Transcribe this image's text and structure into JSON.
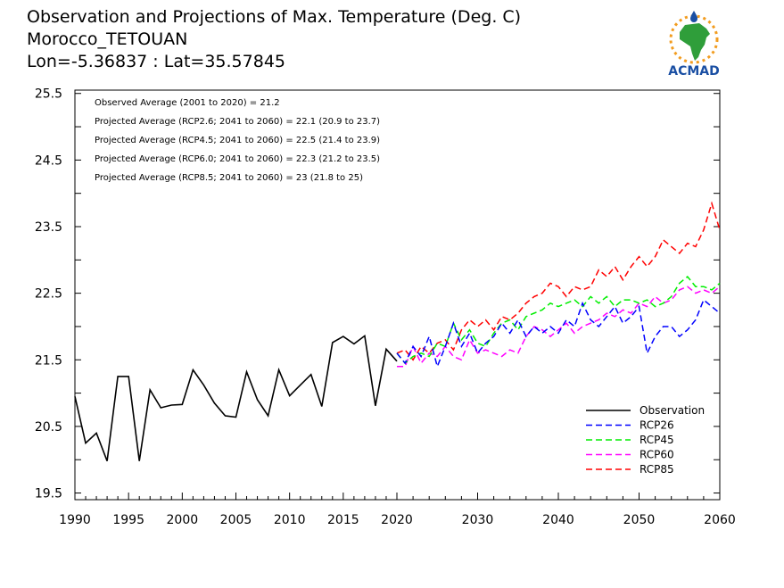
{
  "header": {
    "title_line1": "Observation and Projections of Max. Temperature (Deg. C)",
    "title_line2": "Morocco_TETOUAN",
    "title_line3": "Lon=-5.36837 : Lat=35.57845",
    "logo_text": "ACMAD"
  },
  "colors": {
    "observation": "#000000",
    "rcp26": "#0000ff",
    "rcp45": "#00ee00",
    "rcp60": "#ff00ff",
    "rcp85": "#ff0000",
    "logo_green": "#2f9e3a",
    "logo_blue": "#1a4fa3",
    "logo_orange": "#f29c1f"
  },
  "chart_data": {
    "type": "line",
    "title": "Observation and Projections of Max. Temperature (Deg. C)",
    "xlabel": "",
    "ylabel": "",
    "xlim": [
      1990,
      2060
    ],
    "ylim": [
      19.4,
      25.55
    ],
    "y_ticks": [
      "19.5",
      "20.5",
      "21.5",
      "22.5",
      "23.5",
      "24.5",
      "25.5"
    ],
    "x_ticks": [
      "1990",
      "1995",
      "2000",
      "2005",
      "2010",
      "2015",
      "2020",
      "2030",
      "2040",
      "2050",
      "2060"
    ],
    "x_tick_values": [
      1990,
      1995,
      2000,
      2005,
      2010,
      2015,
      2020,
      2030,
      2040,
      2050,
      2060
    ],
    "annotations": [
      "Observed Average (2001 to 2020) = 21.2",
      "Projected Average (RCP2.6; 2041 to 2060) = 22.1 (20.9 to 23.7)",
      "Projected Average (RCP4.5; 2041 to 2060) = 22.5 (21.4 to 23.9)",
      "Projected Average (RCP6.0; 2041 to 2060) = 22.3 (21.2 to 23.5)",
      "Projected Average (RCP8.5; 2041 to 2060) = 23 (21.8 to 25)"
    ],
    "legend_position": "bottom-right",
    "grid": false,
    "observation": {
      "name": "Observation",
      "x": [
        1990,
        1991,
        1992,
        1993,
        1994,
        1995,
        1996,
        1997,
        1998,
        1999,
        2000,
        2001,
        2002,
        2003,
        2004,
        2005,
        2006,
        2007,
        2008,
        2009,
        2010,
        2011,
        2012,
        2013,
        2014,
        2015,
        2016,
        2017,
        2018,
        2019,
        2020
      ],
      "values": [
        20.95,
        20.25,
        20.4,
        19.98,
        21.25,
        21.25,
        19.98,
        21.05,
        20.78,
        20.82,
        20.83,
        21.35,
        21.12,
        20.85,
        20.66,
        20.64,
        21.32,
        20.9,
        20.66,
        21.35,
        20.96,
        21.12,
        21.28,
        20.8,
        21.76,
        21.85,
        21.74,
        21.86,
        20.81,
        21.66,
        21.48
      ]
    },
    "series": [
      {
        "name": "RCP26",
        "x": [
          2020,
          2021,
          2022,
          2023,
          2024,
          2025,
          2026,
          2027,
          2028,
          2029,
          2030,
          2031,
          2032,
          2033,
          2034,
          2035,
          2036,
          2037,
          2038,
          2039,
          2040,
          2041,
          2042,
          2043,
          2044,
          2045,
          2046,
          2047,
          2048,
          2049,
          2050,
          2051,
          2052,
          2053,
          2054,
          2055,
          2056,
          2057,
          2058,
          2059,
          2060
        ],
        "values": [
          21.6,
          21.45,
          21.7,
          21.55,
          21.85,
          21.4,
          21.7,
          22.05,
          21.7,
          21.9,
          21.6,
          21.75,
          21.85,
          22.05,
          21.9,
          22.1,
          21.85,
          22.0,
          21.9,
          22.0,
          21.9,
          22.1,
          22.0,
          22.35,
          22.1,
          22.0,
          22.15,
          22.3,
          22.05,
          22.15,
          22.3,
          21.6,
          21.85,
          22.0,
          22.0,
          21.85,
          21.95,
          22.1,
          22.4,
          22.3,
          22.2
        ]
      },
      {
        "name": "RCP45",
        "x": [
          2020,
          2021,
          2022,
          2023,
          2024,
          2025,
          2026,
          2027,
          2028,
          2029,
          2030,
          2031,
          2032,
          2033,
          2034,
          2035,
          2036,
          2037,
          2038,
          2039,
          2040,
          2041,
          2042,
          2043,
          2044,
          2045,
          2046,
          2047,
          2048,
          2049,
          2050,
          2051,
          2052,
          2053,
          2054,
          2055,
          2056,
          2057,
          2058,
          2059,
          2060
        ],
        "values": [
          21.6,
          21.45,
          21.55,
          21.6,
          21.55,
          21.75,
          21.7,
          22.05,
          21.8,
          21.95,
          21.75,
          21.7,
          21.9,
          22.05,
          22.1,
          21.95,
          22.15,
          22.2,
          22.25,
          22.35,
          22.3,
          22.35,
          22.4,
          22.3,
          22.45,
          22.35,
          22.45,
          22.3,
          22.4,
          22.4,
          22.35,
          22.4,
          22.3,
          22.35,
          22.45,
          22.65,
          22.75,
          22.6,
          22.6,
          22.55,
          22.65
        ]
      },
      {
        "name": "RCP60",
        "x": [
          2020,
          2021,
          2022,
          2023,
          2024,
          2025,
          2026,
          2027,
          2028,
          2029,
          2030,
          2031,
          2032,
          2033,
          2034,
          2035,
          2036,
          2037,
          2038,
          2039,
          2040,
          2041,
          2042,
          2043,
          2044,
          2045,
          2046,
          2047,
          2048,
          2049,
          2050,
          2051,
          2052,
          2053,
          2054,
          2055,
          2056,
          2057,
          2058,
          2059,
          2060
        ],
        "values": [
          21.4,
          21.4,
          21.7,
          21.45,
          21.6,
          21.55,
          21.7,
          21.55,
          21.5,
          21.8,
          21.6,
          21.65,
          21.6,
          21.55,
          21.65,
          21.6,
          21.85,
          22.0,
          21.95,
          21.85,
          21.95,
          22.05,
          21.9,
          22.0,
          22.05,
          22.1,
          22.2,
          22.15,
          22.25,
          22.2,
          22.35,
          22.3,
          22.45,
          22.35,
          22.4,
          22.55,
          22.6,
          22.5,
          22.55,
          22.5,
          22.6
        ]
      },
      {
        "name": "RCP85",
        "x": [
          2020,
          2021,
          2022,
          2023,
          2024,
          2025,
          2026,
          2027,
          2028,
          2029,
          2030,
          2031,
          2032,
          2033,
          2034,
          2035,
          2036,
          2037,
          2038,
          2039,
          2040,
          2041,
          2042,
          2043,
          2044,
          2045,
          2046,
          2047,
          2048,
          2049,
          2050,
          2051,
          2052,
          2053,
          2054,
          2055,
          2056,
          2057,
          2058,
          2059,
          2060
        ],
        "values": [
          21.6,
          21.65,
          21.5,
          21.7,
          21.6,
          21.75,
          21.8,
          21.65,
          21.95,
          22.1,
          22.0,
          22.1,
          21.95,
          22.15,
          22.1,
          22.2,
          22.35,
          22.45,
          22.5,
          22.65,
          22.6,
          22.45,
          22.6,
          22.55,
          22.6,
          22.85,
          22.75,
          22.9,
          22.7,
          22.9,
          23.05,
          22.9,
          23.05,
          23.3,
          23.2,
          23.1,
          23.25,
          23.2,
          23.45,
          23.85,
          23.45
        ]
      }
    ]
  }
}
